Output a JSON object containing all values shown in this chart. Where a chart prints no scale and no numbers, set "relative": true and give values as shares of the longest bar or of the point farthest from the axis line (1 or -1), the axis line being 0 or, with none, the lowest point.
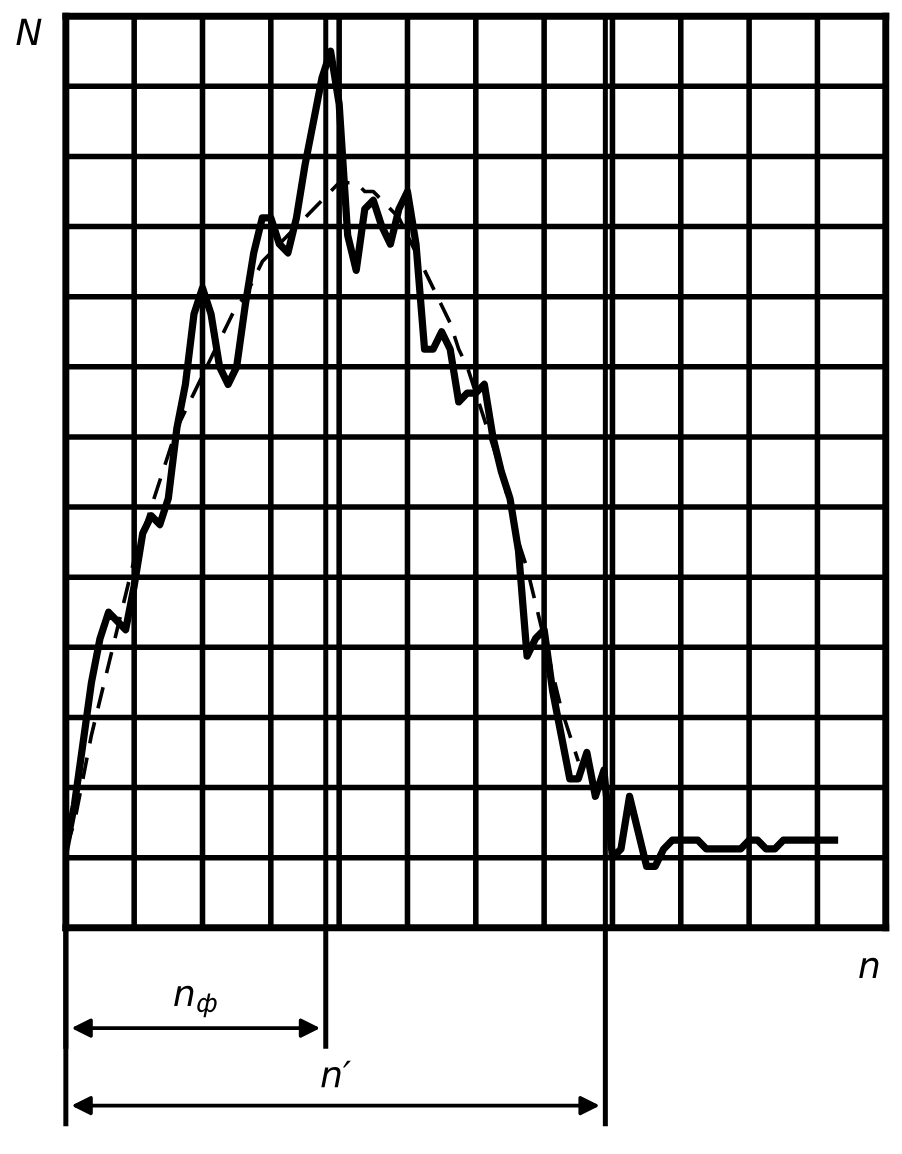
{
  "chart_data": {
    "type": "line",
    "relative": true,
    "xlabel": "n",
    "ylabel": "N",
    "categories": [
      null,
      null,
      null,
      null,
      null,
      null,
      null,
      null,
      null,
      null,
      null,
      null,
      null,
      null,
      null,
      null,
      null,
      null,
      null,
      null,
      null,
      null,
      null,
      null,
      null,
      null,
      null,
      null,
      null,
      null,
      null,
      null,
      null,
      null,
      null,
      null,
      null,
      null,
      null,
      null,
      null,
      null,
      null,
      null,
      null,
      null,
      null,
      null,
      null,
      null,
      null,
      null,
      null,
      null,
      null,
      null,
      null,
      null,
      null,
      null,
      null,
      null,
      null,
      null,
      null,
      null,
      null,
      null,
      null,
      null,
      null,
      null,
      null,
      null,
      null,
      null,
      null,
      null,
      null,
      null,
      null,
      null,
      null,
      null,
      null,
      null,
      null,
      null,
      null,
      null,
      null,
      null,
      null,
      null,
      null,
      null,
      null
    ],
    "grid": true,
    "marker": "none",
    "series": [
      {
        "color": "#000000",
        "line_style": "solid",
        "values": [
          0.09,
          0.14,
          0.21,
          0.28,
          0.33,
          0.36,
          0.35,
          0.34,
          0.39,
          0.45,
          0.47,
          0.46,
          0.49,
          0.57,
          0.62,
          0.7,
          0.73,
          0.7,
          0.64,
          0.62,
          0.64,
          0.71,
          0.77,
          0.81,
          0.81,
          0.78,
          0.77,
          0.81,
          0.87,
          0.92,
          0.97,
          1,
          0.94,
          0.79,
          0.75,
          0.82,
          0.83,
          0.8,
          0.78,
          0.82,
          0.84,
          0.78,
          0.66,
          0.66,
          0.68,
          0.66,
          0.6,
          0.61,
          0.61,
          0.62,
          0.56,
          0.52,
          0.49,
          0.43,
          0.31,
          0.33,
          0.34,
          0.27,
          0.22,
          0.17,
          0.17,
          0.2,
          0.15,
          0.18,
          0.08,
          0.09,
          0.15,
          0.11,
          0.07,
          0.07,
          0.09,
          0.1,
          0.1,
          0.1,
          0.1,
          0.09,
          0.09,
          0.09,
          0.09,
          0.09,
          0.1,
          0.1,
          0.09,
          0.09,
          0.1,
          0.1,
          0.1,
          0.1,
          0.1,
          0.1,
          0.1,
          null,
          null,
          null,
          null,
          null,
          null
        ]
      },
      {
        "color": "#000000",
        "line_style": "dashed",
        "values": [
          0.09,
          0.12,
          0.17,
          0.22,
          0.26,
          0.3,
          0.34,
          0.38,
          0.42,
          0.45,
          0.48,
          0.51,
          0.54,
          0.57,
          0.59,
          0.61,
          0.63,
          0.65,
          0.67,
          0.69,
          0.71,
          0.72,
          0.74,
          0.76,
          0.77,
          0.78,
          0.79,
          0.8,
          0.81,
          0.82,
          0.83,
          0.84,
          0.85,
          0.85,
          0.85,
          0.84,
          0.84,
          0.83,
          0.82,
          0.81,
          0.79,
          0.77,
          0.75,
          0.73,
          0.71,
          0.69,
          0.66,
          0.64,
          0.61,
          0.58,
          0.55,
          0.52,
          0.48,
          0.44,
          0.41,
          0.37,
          0.33,
          0.29,
          0.25,
          0.22,
          0.19,
          null,
          null,
          null,
          null,
          null,
          null,
          null,
          null,
          null,
          null,
          null,
          null,
          null,
          null,
          null,
          null,
          null,
          null,
          null,
          null,
          null,
          null,
          null,
          null,
          null,
          null,
          null,
          null,
          null,
          null,
          null,
          null,
          null,
          null,
          null,
          null
        ]
      }
    ],
    "annotations": [
      "n$_{ф}$",
      "n′"
    ]
  }
}
